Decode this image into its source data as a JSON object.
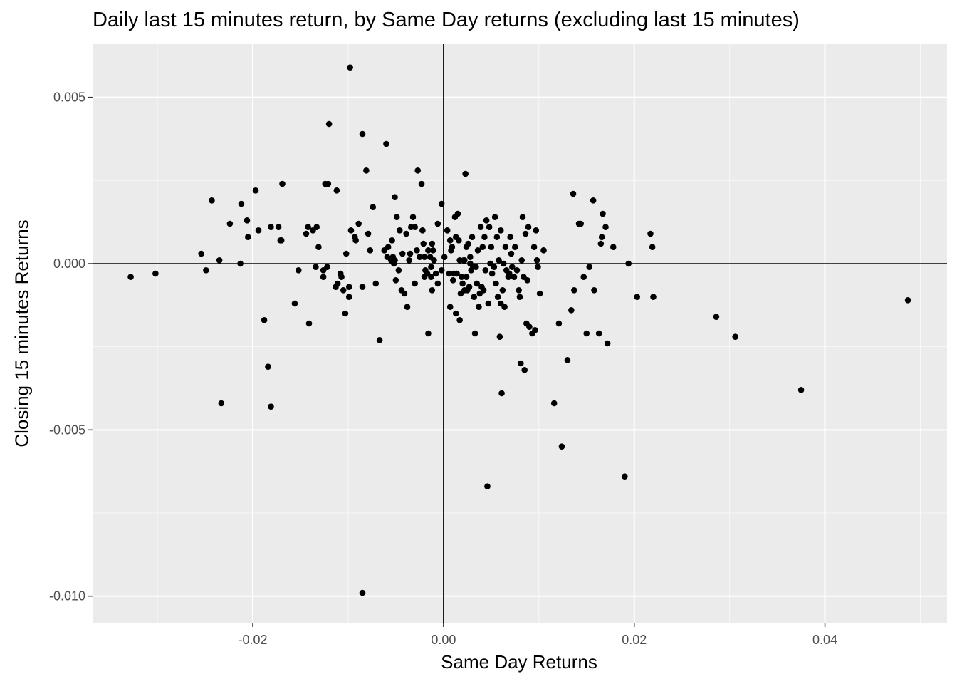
{
  "chart_data": {
    "type": "scatter",
    "title": "Daily last 15 minutes return, by Same Day returns (excluding last 15 minutes)",
    "xlabel": "Same Day Returns",
    "ylabel": "Closing 15 minutes Returns",
    "xlim": [
      -0.0368,
      0.0528
    ],
    "ylim": [
      -0.0108,
      0.0066
    ],
    "x_ticks": [
      -0.02,
      0.0,
      0.02,
      0.04
    ],
    "x_tick_labels": [
      "-0.02",
      "0.00",
      "0.02",
      "0.04"
    ],
    "y_ticks": [
      0.005,
      0.0,
      -0.005,
      -0.01
    ],
    "y_tick_labels": [
      "0.005",
      "0.000",
      "-0.005",
      "-0.010"
    ],
    "reference_lines": {
      "x": 0,
      "y": 0
    },
    "grid": true,
    "panel_background": "#ebebeb",
    "point_color": "#000000",
    "points": [
      [
        -0.0328,
        -0.0004
      ],
      [
        -0.0302,
        -0.0003
      ],
      [
        -0.0254,
        0.0003
      ],
      [
        -0.0249,
        -0.0002
      ],
      [
        -0.0243,
        0.0019
      ],
      [
        -0.0235,
        0.0001
      ],
      [
        -0.0233,
        -0.0042
      ],
      [
        -0.0224,
        0.0012
      ],
      [
        -0.0213,
        0.0
      ],
      [
        -0.0212,
        0.0018
      ],
      [
        -0.0206,
        0.0013
      ],
      [
        -0.0205,
        0.0008
      ],
      [
        -0.0197,
        0.0022
      ],
      [
        -0.0194,
        0.001
      ],
      [
        -0.0188,
        -0.0017
      ],
      [
        -0.0184,
        -0.0031
      ],
      [
        -0.0181,
        0.0011
      ],
      [
        -0.0181,
        -0.0043
      ],
      [
        -0.0173,
        0.0011
      ],
      [
        -0.0171,
        0.0007
      ],
      [
        -0.017,
        0.0007
      ],
      [
        -0.0169,
        0.0024
      ],
      [
        -0.0156,
        -0.0012
      ],
      [
        -0.0152,
        -0.0002
      ],
      [
        -0.0144,
        0.0009
      ],
      [
        -0.0142,
        0.0011
      ],
      [
        -0.0141,
        -0.0018
      ],
      [
        -0.0137,
        0.001
      ],
      [
        -0.0134,
        -0.0001
      ],
      [
        -0.0133,
        0.0011
      ],
      [
        -0.0131,
        0.0005
      ],
      [
        -0.0126,
        -0.0004
      ],
      [
        -0.0126,
        -0.0002
      ],
      [
        -0.0124,
        0.0024
      ],
      [
        -0.0122,
        -0.0001
      ],
      [
        -0.0121,
        0.0024
      ],
      [
        -0.012,
        0.0042
      ],
      [
        -0.0113,
        -0.0007
      ],
      [
        -0.0112,
        0.0022
      ],
      [
        -0.0111,
        -0.0006
      ],
      [
        -0.0108,
        -0.0003
      ],
      [
        -0.0107,
        -0.0004
      ],
      [
        -0.0105,
        -0.0008
      ],
      [
        -0.0103,
        -0.0015
      ],
      [
        -0.0102,
        0.0003
      ],
      [
        -0.0099,
        -0.0007
      ],
      [
        -0.0099,
        -0.001
      ],
      [
        -0.0098,
        0.0059
      ],
      [
        -0.0097,
        0.001
      ],
      [
        -0.0093,
        0.0008
      ],
      [
        -0.0092,
        0.0007
      ],
      [
        -0.0089,
        0.0012
      ],
      [
        -0.0085,
        -0.0007
      ],
      [
        -0.0085,
        0.0039
      ],
      [
        -0.0085,
        -0.0099
      ],
      [
        -0.0081,
        0.0028
      ],
      [
        -0.0079,
        0.0009
      ],
      [
        -0.0077,
        0.0004
      ],
      [
        -0.0074,
        0.0017
      ],
      [
        -0.0071,
        -0.0006
      ],
      [
        -0.0067,
        -0.0023
      ],
      [
        -0.0062,
        0.0004
      ],
      [
        -0.006,
        0.0036
      ],
      [
        -0.0059,
        0.0002
      ],
      [
        -0.0058,
        0.0005
      ],
      [
        -0.0055,
        0.0001
      ],
      [
        -0.0054,
        0.0007
      ],
      [
        -0.0053,
        0.0002
      ],
      [
        -0.0052,
        0.0
      ],
      [
        -0.0051,
        0.002
      ],
      [
        -0.0051,
        0.0001
      ],
      [
        -0.005,
        -0.0005
      ],
      [
        -0.0049,
        0.0014
      ],
      [
        -0.0047,
        -0.0002
      ],
      [
        -0.0046,
        0.001
      ],
      [
        -0.0044,
        -0.0008
      ],
      [
        -0.0043,
        0.0003
      ],
      [
        -0.0041,
        -0.0009
      ],
      [
        -0.0039,
        0.0009
      ],
      [
        -0.0038,
        -0.0013
      ],
      [
        -0.0036,
        0.0001
      ],
      [
        -0.0035,
        0.0003
      ],
      [
        -0.0034,
        0.0011
      ],
      [
        -0.0032,
        0.0014
      ],
      [
        -0.003,
        -0.0006
      ],
      [
        -0.003,
        0.0011
      ],
      [
        -0.0028,
        0.0004
      ],
      [
        -0.0027,
        0.0028
      ],
      [
        -0.0025,
        0.0002
      ],
      [
        -0.0023,
        0.0024
      ],
      [
        -0.0022,
        0.001
      ],
      [
        -0.0021,
        0.0006
      ],
      [
        -0.002,
        0.0002
      ],
      [
        -0.002,
        -0.0004
      ],
      [
        -0.0019,
        -0.0002
      ],
      [
        -0.0017,
        -0.0003
      ],
      [
        -0.0016,
        0.0004
      ],
      [
        -0.0016,
        -0.0021
      ],
      [
        -0.0014,
        0.0002
      ],
      [
        -0.0013,
        -0.0001
      ],
      [
        -0.0013,
        -0.0004
      ],
      [
        -0.0012,
        -0.0008
      ],
      [
        -0.0012,
        0.0006
      ],
      [
        -0.0011,
        0.0004
      ],
      [
        -0.001,
        0.0001
      ],
      [
        -0.0008,
        -0.0003
      ],
      [
        -0.0006,
        0.0012
      ],
      [
        -0.0006,
        -0.0006
      ],
      [
        -0.0002,
        0.0018
      ],
      [
        -0.0002,
        -0.0002
      ],
      [
        0.0001,
        0.0002
      ],
      [
        0.0004,
        0.001
      ],
      [
        0.0006,
        -0.0003
      ],
      [
        0.0007,
        0.0007
      ],
      [
        0.0007,
        -0.0013
      ],
      [
        0.0008,
        0.0004
      ],
      [
        0.0009,
        0.0005
      ],
      [
        0.001,
        -0.0005
      ],
      [
        0.0011,
        -0.0003
      ],
      [
        0.0012,
        0.0014
      ],
      [
        0.0013,
        0.0008
      ],
      [
        0.0013,
        -0.0015
      ],
      [
        0.0014,
        -0.0003
      ],
      [
        0.0015,
        0.0015
      ],
      [
        0.0016,
        0.0007
      ],
      [
        0.0017,
        0.0001
      ],
      [
        0.0017,
        -0.0017
      ],
      [
        0.0018,
        -0.0009
      ],
      [
        0.0019,
        -0.0004
      ],
      [
        0.002,
        -0.0006
      ],
      [
        0.0021,
        0.0001
      ],
      [
        0.0022,
        0.0001
      ],
      [
        0.0022,
        -0.0008
      ],
      [
        0.0023,
        0.0027
      ],
      [
        0.0024,
        0.0005
      ],
      [
        0.0024,
        -0.0004
      ],
      [
        0.0025,
        -0.0008
      ],
      [
        0.0026,
        0.0006
      ],
      [
        0.0027,
        -0.0007
      ],
      [
        0.0028,
        0.0002
      ],
      [
        0.0028,
        0.0
      ],
      [
        0.0029,
        -0.0002
      ],
      [
        0.003,
        0.0008
      ],
      [
        0.0031,
        -0.0001
      ],
      [
        0.0032,
        -0.001
      ],
      [
        0.0033,
        -0.0021
      ],
      [
        0.0034,
        -0.0001
      ],
      [
        0.0035,
        -0.0006
      ],
      [
        0.0036,
        0.0004
      ],
      [
        0.0037,
        -0.0013
      ],
      [
        0.0038,
        -0.0009
      ],
      [
        0.0039,
        0.0011
      ],
      [
        0.004,
        -0.0007
      ],
      [
        0.0041,
        0.0005
      ],
      [
        0.0042,
        -0.0008
      ],
      [
        0.0043,
        0.0008
      ],
      [
        0.0044,
        -0.0002
      ],
      [
        0.0045,
        0.0013
      ],
      [
        0.0046,
        -0.0067
      ],
      [
        0.0047,
        -0.0012
      ],
      [
        0.0048,
        0.0011
      ],
      [
        0.0049,
        0.0
      ],
      [
        0.005,
        0.0005
      ],
      [
        0.0051,
        -0.0003
      ],
      [
        0.0053,
        -0.0001
      ],
      [
        0.0054,
        0.0014
      ],
      [
        0.0055,
        -0.0006
      ],
      [
        0.0056,
        0.0008
      ],
      [
        0.0057,
        -0.001
      ],
      [
        0.0058,
        0.0001
      ],
      [
        0.0059,
        -0.0022
      ],
      [
        0.006,
        0.001
      ],
      [
        0.006,
        -0.0012
      ],
      [
        0.0061,
        -0.0039
      ],
      [
        0.0062,
        -0.0008
      ],
      [
        0.0063,
        0.0
      ],
      [
        0.0064,
        -0.0013
      ],
      [
        0.0065,
        0.0005
      ],
      [
        0.0066,
        -0.0002
      ],
      [
        0.0068,
        -0.0004
      ],
      [
        0.0069,
        -0.0003
      ],
      [
        0.007,
        0.0008
      ],
      [
        0.0071,
        0.0003
      ],
      [
        0.0072,
        -0.0001
      ],
      [
        0.0074,
        -0.0004
      ],
      [
        0.0075,
        0.0005
      ],
      [
        0.0077,
        -0.0002
      ],
      [
        0.0079,
        -0.0008
      ],
      [
        0.008,
        -0.001
      ],
      [
        0.0081,
        -0.003
      ],
      [
        0.0082,
        0.0001
      ],
      [
        0.0083,
        0.0014
      ],
      [
        0.0084,
        -0.0004
      ],
      [
        0.0085,
        -0.0032
      ],
      [
        0.0086,
        0.0009
      ],
      [
        0.0087,
        -0.0018
      ],
      [
        0.0088,
        -0.0005
      ],
      [
        0.0089,
        0.0011
      ],
      [
        0.009,
        -0.0019
      ],
      [
        0.0093,
        -0.0021
      ],
      [
        0.0095,
        0.0005
      ],
      [
        0.0096,
        -0.002
      ],
      [
        0.0097,
        0.001
      ],
      [
        0.0098,
        0.0001
      ],
      [
        0.0099,
        -0.0001
      ],
      [
        0.0101,
        -0.0009
      ],
      [
        0.0105,
        0.0004
      ],
      [
        0.0116,
        -0.0042
      ],
      [
        0.0121,
        -0.0018
      ],
      [
        0.0124,
        -0.0055
      ],
      [
        0.013,
        -0.0029
      ],
      [
        0.0134,
        -0.0014
      ],
      [
        0.0136,
        0.0021
      ],
      [
        0.0137,
        -0.0008
      ],
      [
        0.0142,
        0.0012
      ],
      [
        0.0144,
        0.0012
      ],
      [
        0.0147,
        -0.0004
      ],
      [
        0.015,
        -0.0021
      ],
      [
        0.0153,
        -0.0001
      ],
      [
        0.0157,
        0.0019
      ],
      [
        0.0158,
        -0.0008
      ],
      [
        0.0163,
        -0.0021
      ],
      [
        0.0165,
        0.0006
      ],
      [
        0.0166,
        0.0008
      ],
      [
        0.0167,
        0.0015
      ],
      [
        0.017,
        0.0011
      ],
      [
        0.0172,
        -0.0024
      ],
      [
        0.0178,
        0.0005
      ],
      [
        0.019,
        -0.0064
      ],
      [
        0.0194,
        0.0
      ],
      [
        0.0203,
        -0.001
      ],
      [
        0.0217,
        0.0009
      ],
      [
        0.0219,
        0.0005
      ],
      [
        0.022,
        -0.001
      ],
      [
        0.0286,
        -0.0016
      ],
      [
        0.0306,
        -0.0022
      ],
      [
        0.0375,
        -0.0038
      ],
      [
        0.0487,
        -0.0011
      ]
    ]
  }
}
